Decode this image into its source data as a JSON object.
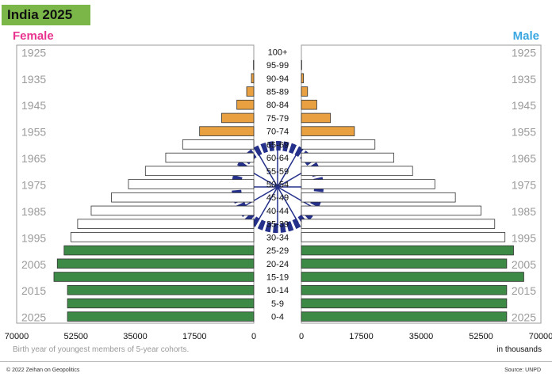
{
  "header": {
    "title": "India 2025"
  },
  "labels": {
    "female": "Female",
    "male": "Male",
    "units": "in thousands",
    "note": "Birth year of youngest members of 5-year cohorts."
  },
  "footer": {
    "copyright": "© 2022 Zeihan on Geopolitics",
    "source": "Source: UNPD"
  },
  "colors": {
    "orange": "#e8a040",
    "white": "#ffffff",
    "green": "#3c8a46",
    "navy": "#24308a",
    "female": "#e8338f",
    "male": "#3aa7e0"
  },
  "chart_data": {
    "type": "bar",
    "orientation": "horizontal-population-pyramid",
    "categories": [
      "100+",
      "95-99",
      "90-94",
      "85-89",
      "80-84",
      "75-79",
      "70-74",
      "65-69",
      "60-64",
      "55-59",
      "50-54",
      "45-49",
      "40-44",
      "35-39",
      "30-34",
      "25-29",
      "20-24",
      "15-19",
      "10-14",
      "5-9",
      "0-4"
    ],
    "birth_year_labels": [
      "1925",
      "1935",
      "1945",
      "1955",
      "1965",
      "1975",
      "1985",
      "1995",
      "2005",
      "2015",
      "2025"
    ],
    "series": [
      {
        "name": "Female",
        "values": [
          0,
          100,
          700,
          2100,
          5000,
          9500,
          16000,
          21000,
          26000,
          32000,
          37000,
          42000,
          48000,
          52000,
          54000,
          56000,
          58000,
          59000,
          55000,
          55000,
          55000
        ]
      },
      {
        "name": "Male",
        "values": [
          0,
          100,
          600,
          1800,
          4500,
          8500,
          15500,
          21500,
          27000,
          32500,
          39000,
          45000,
          52500,
          56500,
          59500,
          62000,
          60000,
          65000,
          60000,
          60000,
          60000
        ]
      }
    ],
    "bar_colors": [
      "orange",
      "orange",
      "orange",
      "orange",
      "orange",
      "orange",
      "orange",
      "white",
      "white",
      "white",
      "white",
      "white",
      "white",
      "white",
      "white",
      "green",
      "green",
      "green",
      "green",
      "green",
      "green"
    ],
    "xticks_female": [
      "70000",
      "52500",
      "35000",
      "17500",
      "0"
    ],
    "xticks_male": [
      "0",
      "17500",
      "35000",
      "52500",
      "70000"
    ],
    "xlim": [
      0,
      70000
    ]
  }
}
